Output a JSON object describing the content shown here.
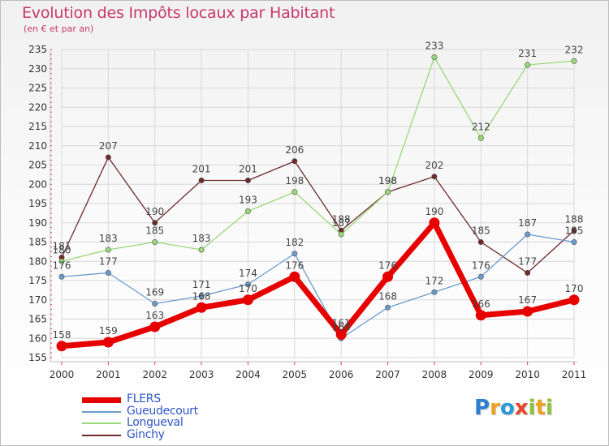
{
  "title": "Evolution des Impôts locaux par Habitant",
  "subtitle": "(en € et par an)",
  "logo": {
    "letters": [
      {
        "ch": "P",
        "color": "#2a7fd0"
      },
      {
        "ch": "r",
        "color": "#f0a020"
      },
      {
        "ch": "o",
        "color": "#2a9ad8"
      },
      {
        "ch": "x",
        "color": "#e8462a"
      },
      {
        "ch": "i",
        "color": "#8cc43c"
      },
      {
        "ch": "t",
        "color": "#f0a020"
      },
      {
        "ch": "i",
        "color": "#8cc43c"
      }
    ]
  },
  "chart_data": {
    "type": "line",
    "title": "Evolution des Impôts locaux par Habitant",
    "subtitle": "(en € et par an)",
    "x": [
      "2000",
      "2001",
      "2002",
      "2003",
      "2004",
      "2005",
      "2006",
      "2007",
      "2008",
      "2009",
      "2010",
      "2011"
    ],
    "ylim": [
      155,
      235
    ],
    "yticks": [
      155,
      160,
      165,
      170,
      175,
      180,
      185,
      190,
      195,
      200,
      205,
      210,
      215,
      220,
      225,
      230,
      235
    ],
    "grid": true,
    "legend_position": "bottom-left",
    "series": [
      {
        "name": "FLERS",
        "color": "#e60000",
        "values": [
          158,
          159,
          163,
          168,
          170,
          176,
          161,
          176,
          190,
          166,
          167,
          170
        ]
      },
      {
        "name": "Gueudecourt",
        "color": "#6b9bcc",
        "values": [
          176,
          177,
          169,
          171,
          174,
          182,
          160,
          168,
          172,
          176,
          187,
          185
        ]
      },
      {
        "name": "Longueval",
        "color": "#9ad87a",
        "values": [
          180,
          183,
          185,
          183,
          193,
          198,
          187,
          198,
          233,
          212,
          231,
          232
        ]
      },
      {
        "name": "Ginchy",
        "color": "#6e2a2a",
        "values": [
          181,
          207,
          190,
          201,
          201,
          206,
          188,
          198,
          202,
          185,
          177,
          188
        ]
      }
    ]
  }
}
